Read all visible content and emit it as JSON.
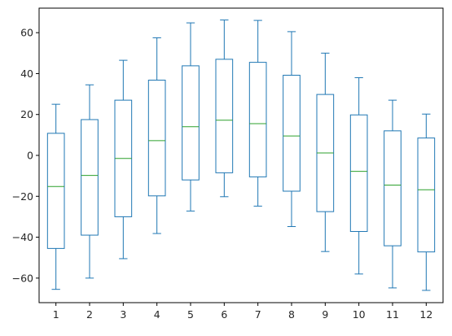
{
  "chart_data": {
    "type": "box",
    "title": "",
    "xlabel": "",
    "ylabel": "",
    "categories": [
      "1",
      "2",
      "3",
      "4",
      "5",
      "6",
      "7",
      "8",
      "9",
      "10",
      "11",
      "12"
    ],
    "boxes": [
      {
        "label": "1",
        "whisker_low": -65.5,
        "q1": -45.5,
        "median": -15.2,
        "q3": 10.8,
        "whisker_high": 25.0
      },
      {
        "label": "2",
        "whisker_low": -60.0,
        "q1": -39.0,
        "median": -9.8,
        "q3": 17.5,
        "whisker_high": 34.5
      },
      {
        "label": "3",
        "whisker_low": -50.5,
        "q1": -30.0,
        "median": -1.5,
        "q3": 27.0,
        "whisker_high": 46.5
      },
      {
        "label": "4",
        "whisker_low": -38.2,
        "q1": -19.8,
        "median": 7.2,
        "q3": 36.8,
        "whisker_high": 57.5
      },
      {
        "label": "5",
        "whisker_low": -27.2,
        "q1": -12.0,
        "median": 14.0,
        "q3": 43.8,
        "whisker_high": 64.8
      },
      {
        "label": "6",
        "whisker_low": -20.2,
        "q1": -8.5,
        "median": 17.2,
        "q3": 47.0,
        "whisker_high": 66.2
      },
      {
        "label": "7",
        "whisker_low": -24.8,
        "q1": -10.5,
        "median": 15.5,
        "q3": 45.5,
        "whisker_high": 66.0
      },
      {
        "label": "8",
        "whisker_low": -34.8,
        "q1": -17.5,
        "median": 9.5,
        "q3": 39.2,
        "whisker_high": 60.5
      },
      {
        "label": "9",
        "whisker_low": -47.0,
        "q1": -27.5,
        "median": 1.2,
        "q3": 29.8,
        "whisker_high": 50.0
      },
      {
        "label": "10",
        "whisker_low": -58.0,
        "q1": -37.2,
        "median": -7.8,
        "q3": 19.8,
        "whisker_high": 38.0
      },
      {
        "label": "11",
        "whisker_low": -64.8,
        "q1": -44.2,
        "median": -14.5,
        "q3": 12.0,
        "whisker_high": 27.0
      },
      {
        "label": "12",
        "whisker_low": -66.0,
        "q1": -47.2,
        "median": -16.8,
        "q3": 8.5,
        "whisker_high": 20.2
      }
    ],
    "y_ticks": [
      -60,
      -40,
      -20,
      0,
      20,
      40,
      60
    ],
    "ylim": [
      -72,
      72
    ],
    "grid": false,
    "legend": "none",
    "colors": {
      "box": "#1f77b4",
      "median": "#2ca02c",
      "axis": "#000000"
    }
  }
}
